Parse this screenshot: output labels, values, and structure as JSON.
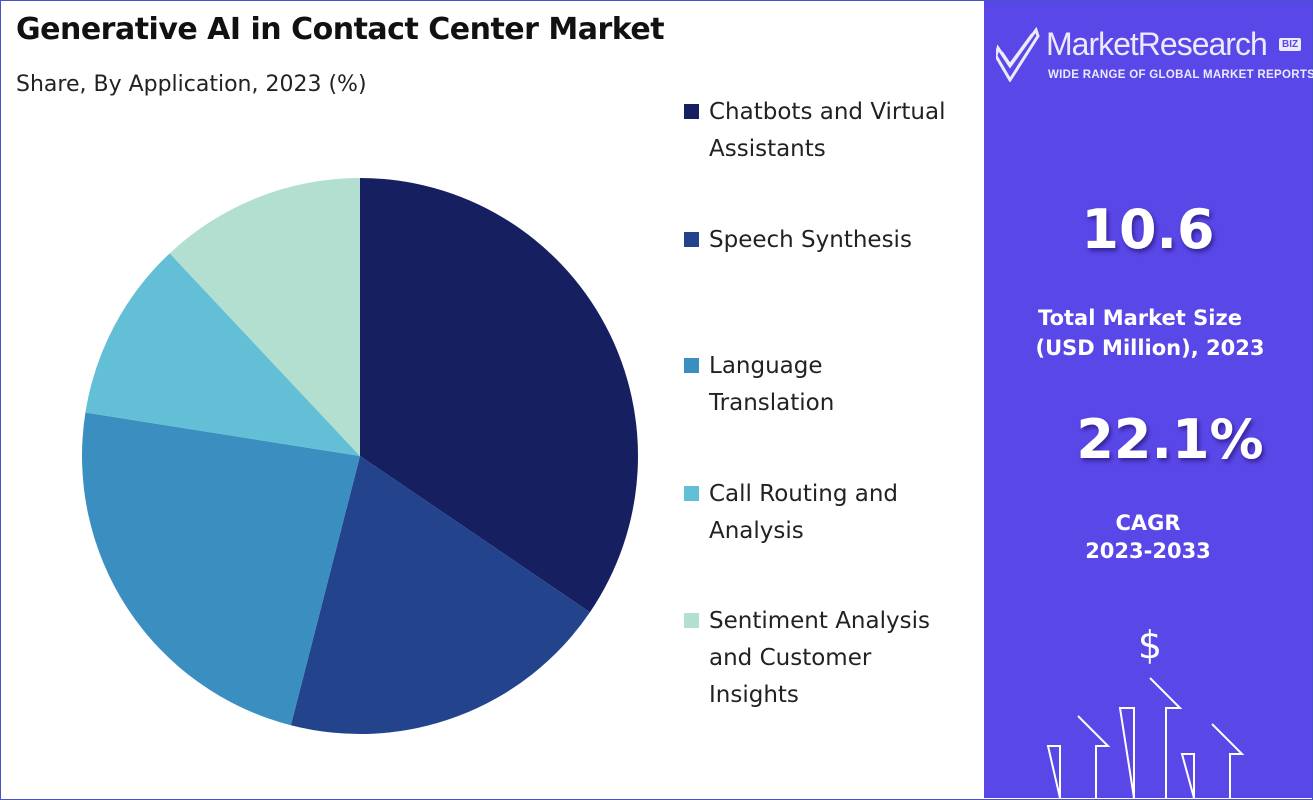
{
  "header": {
    "title": "Generative AI in Contact Center Market",
    "subtitle": "Share, By Application, 2023 (%)"
  },
  "brand": {
    "name": "MarketResearch",
    "badge": "BIZ",
    "tagline": "WIDE RANGE OF GLOBAL MARKET REPORTS",
    "panel_color": "#5a47e8"
  },
  "stats": {
    "market_size_value": "10.6",
    "market_size_label_line1": "Total Market Size",
    "market_size_label_line2": "(USD Million), 2023",
    "cagr_value": "22.1%",
    "cagr_label_line1": "CAGR",
    "cagr_label_line2": "2023-2033"
  },
  "icons": {
    "currency": "$",
    "logo": "check-mark-logo-icon",
    "growth": "up-arrows-icon"
  },
  "chart_data": {
    "type": "pie",
    "title": "Generative AI in Contact Center Market",
    "subtitle": "Share, By Application, 2023 (%)",
    "legend_position": "right",
    "slices": [
      {
        "label": "Chatbots and Virtual Assistants",
        "label_lines": [
          "Chatbots and Virtual",
          "Assistants"
        ],
        "value": 34.5,
        "color": "#162060"
      },
      {
        "label": "Speech Synthesis",
        "label_lines": [
          "Speech Synthesis"
        ],
        "value": 19.5,
        "color": "#23448c"
      },
      {
        "label": "Language Translation",
        "label_lines": [
          "Language",
          "Translation"
        ],
        "value": 23.5,
        "color": "#3b8fc0"
      },
      {
        "label": "Call Routing and Analysis",
        "label_lines": [
          "Call Routing and",
          "Analysis"
        ],
        "value": 10.5,
        "color": "#62bfd5"
      },
      {
        "label": "Sentiment Analysis and Customer Insights",
        "label_lines": [
          "Sentiment Analysis",
          "and Customer",
          "Insights"
        ],
        "value": 12.0,
        "color": "#b3dfd0"
      }
    ]
  }
}
